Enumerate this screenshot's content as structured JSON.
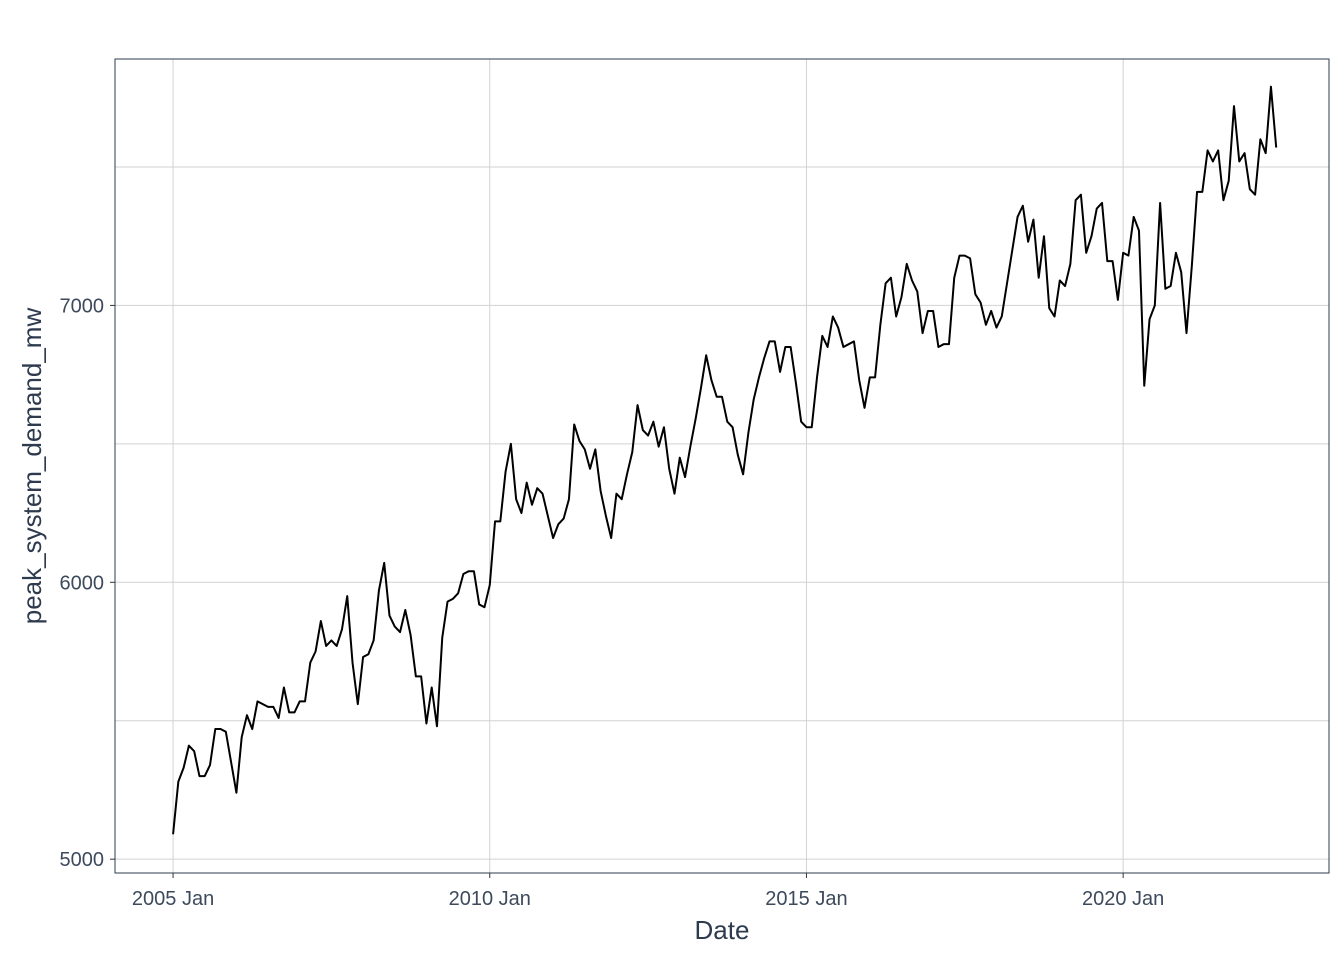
{
  "chart_data": {
    "type": "line",
    "xlabel": "Date",
    "ylabel": "peak_system_demand_mw",
    "x_ticks": [
      "2005 Jan",
      "2010 Jan",
      "2015 Jan",
      "2020 Jan"
    ],
    "y_ticks": [
      "5000",
      "6000",
      "7000"
    ],
    "ylim": [
      4950,
      7890
    ],
    "xlim": [
      "2004-02",
      "2023-04"
    ],
    "grid": true,
    "legend": "none",
    "line_color": "#000000",
    "series": [
      {
        "x": [
          "2005-01",
          "2005-02",
          "2005-03",
          "2005-04",
          "2005-05",
          "2005-06",
          "2005-07",
          "2005-08",
          "2005-09",
          "2005-10",
          "2005-11",
          "2005-12",
          "2006-01",
          "2006-02",
          "2006-03",
          "2006-04",
          "2006-05",
          "2006-06",
          "2006-07",
          "2006-08",
          "2006-09",
          "2006-10",
          "2006-11",
          "2006-12",
          "2007-01",
          "2007-02",
          "2007-03",
          "2007-04",
          "2007-05",
          "2007-06",
          "2007-07",
          "2007-08",
          "2007-09",
          "2007-10",
          "2007-11",
          "2007-12",
          "2008-01",
          "2008-02",
          "2008-03",
          "2008-04",
          "2008-05",
          "2008-06",
          "2008-07",
          "2008-08",
          "2008-09",
          "2008-10",
          "2008-11",
          "2008-12",
          "2009-01",
          "2009-02",
          "2009-03",
          "2009-04",
          "2009-05",
          "2009-06",
          "2009-07",
          "2009-08",
          "2009-09",
          "2009-10",
          "2009-11",
          "2009-12",
          "2010-01",
          "2010-02",
          "2010-03",
          "2010-04",
          "2010-05",
          "2010-06",
          "2010-07",
          "2010-08",
          "2010-09",
          "2010-10",
          "2010-11",
          "2010-12",
          "2011-01",
          "2011-02",
          "2011-03",
          "2011-04",
          "2011-05",
          "2011-06",
          "2011-07",
          "2011-08",
          "2011-09",
          "2011-10",
          "2011-11",
          "2011-12",
          "2012-01",
          "2012-02",
          "2012-03",
          "2012-04",
          "2012-05",
          "2012-06",
          "2012-07",
          "2012-08",
          "2012-09",
          "2012-10",
          "2012-11",
          "2012-12",
          "2013-01",
          "2013-02",
          "2013-03",
          "2013-04",
          "2013-05",
          "2013-06",
          "2013-07",
          "2013-08",
          "2013-09",
          "2013-10",
          "2013-11",
          "2013-12",
          "2014-01",
          "2014-02",
          "2014-03",
          "2014-04",
          "2014-05",
          "2014-06",
          "2014-07",
          "2014-08",
          "2014-09",
          "2014-10",
          "2014-11",
          "2014-12",
          "2015-01",
          "2015-02",
          "2015-03",
          "2015-04",
          "2015-05",
          "2015-06",
          "2015-07",
          "2015-08",
          "2015-09",
          "2015-10",
          "2015-11",
          "2015-12",
          "2016-01",
          "2016-02",
          "2016-03",
          "2016-04",
          "2016-05",
          "2016-06",
          "2016-07",
          "2016-08",
          "2016-09",
          "2016-10",
          "2016-11",
          "2016-12",
          "2017-01",
          "2017-02",
          "2017-03",
          "2017-04",
          "2017-05",
          "2017-06",
          "2017-07",
          "2017-08",
          "2017-09",
          "2017-10",
          "2017-11",
          "2017-12",
          "2018-01",
          "2018-02",
          "2018-03",
          "2018-04",
          "2018-05",
          "2018-06",
          "2018-07",
          "2018-08",
          "2018-09",
          "2018-10",
          "2018-11",
          "2018-12",
          "2019-01",
          "2019-02",
          "2019-03",
          "2019-04",
          "2019-05",
          "2019-06",
          "2019-07",
          "2019-08",
          "2019-09",
          "2019-10",
          "2019-11",
          "2019-12",
          "2020-01",
          "2020-02",
          "2020-03",
          "2020-04",
          "2020-05",
          "2020-06",
          "2020-07",
          "2020-08",
          "2020-09",
          "2020-10",
          "2020-11",
          "2020-12",
          "2021-01",
          "2021-02",
          "2021-03",
          "2021-04",
          "2021-05",
          "2021-06",
          "2021-07",
          "2021-08",
          "2021-09",
          "2021-10",
          "2021-11",
          "2021-12",
          "2022-01",
          "2022-02",
          "2022-03",
          "2022-04",
          "2022-05",
          "2022-06"
        ],
        "values": [
          5090,
          5280,
          5330,
          5410,
          5390,
          5300,
          5300,
          5340,
          5470,
          5470,
          5460,
          5350,
          5240,
          5440,
          5520,
          5470,
          5570,
          5560,
          5550,
          5550,
          5510,
          5620,
          5530,
          5530,
          5570,
          5570,
          5710,
          5750,
          5860,
          5770,
          5790,
          5770,
          5830,
          5950,
          5710,
          5560,
          5730,
          5740,
          5790,
          5970,
          6070,
          5880,
          5840,
          5820,
          5900,
          5810,
          5660,
          5660,
          5490,
          5620,
          5480,
          5800,
          5930,
          5940,
          5960,
          6030,
          6040,
          6040,
          5920,
          5910,
          5990,
          6220,
          6220,
          6400,
          6500,
          6300,
          6250,
          6360,
          6280,
          6340,
          6320,
          6240,
          6160,
          6210,
          6230,
          6300,
          6570,
          6510,
          6480,
          6410,
          6480,
          6330,
          6240,
          6160,
          6320,
          6300,
          6390,
          6470,
          6640,
          6550,
          6530,
          6580,
          6490,
          6560,
          6410,
          6320,
          6450,
          6380,
          6490,
          6590,
          6700,
          6820,
          6730,
          6670,
          6670,
          6580,
          6560,
          6460,
          6390,
          6540,
          6660,
          6740,
          6810,
          6870,
          6870,
          6760,
          6850,
          6850,
          6720,
          6580,
          6560,
          6560,
          6740,
          6890,
          6850,
          6960,
          6920,
          6850,
          6860,
          6870,
          6730,
          6630,
          6740,
          6740,
          6930,
          7080,
          7100,
          6960,
          7030,
          7150,
          7090,
          7050,
          6900,
          6980,
          6980,
          6850,
          6860,
          6860,
          7100,
          7180,
          7180,
          7170,
          7040,
          7010,
          6930,
          6980,
          6920,
          6960,
          7080,
          7200,
          7320,
          7360,
          7230,
          7310,
          7100,
          7250,
          6990,
          6960,
          7090,
          7070,
          7150,
          7380,
          7400,
          7190,
          7250,
          7350,
          7370,
          7160,
          7160,
          7020,
          7190,
          7180,
          7320,
          7270,
          6710,
          6950,
          7000,
          7370,
          7060,
          7070,
          7190,
          7120,
          6900,
          7140,
          7410,
          7410,
          7560,
          7520,
          7560,
          7380,
          7450,
          7720,
          7520,
          7550,
          7420,
          7400,
          7600,
          7550,
          7790,
          7570
        ]
      }
    ]
  }
}
